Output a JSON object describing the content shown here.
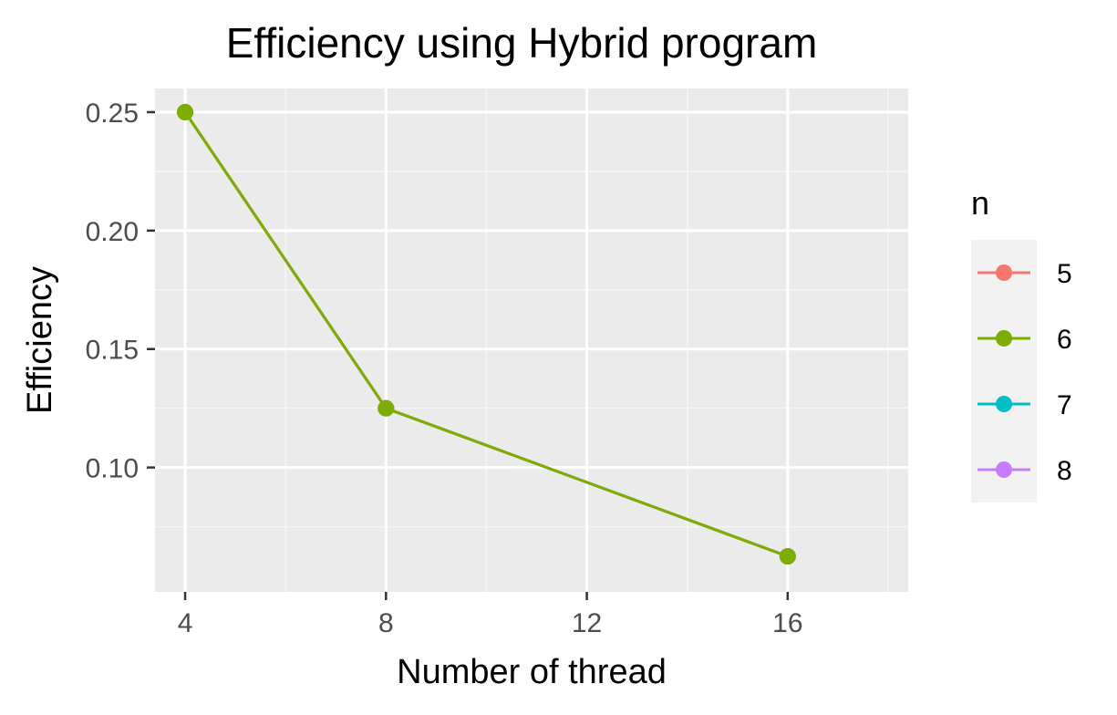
{
  "chart_data": {
    "type": "line",
    "title": "Efficiency using Hybrid program",
    "xlabel": "Number of thread",
    "ylabel": "Efficiency",
    "x": [
      4,
      8,
      16
    ],
    "xlim": [
      3.4,
      18.4
    ],
    "ylim": [
      0.0475,
      0.26
    ],
    "xticks": [
      4,
      8,
      12,
      16
    ],
    "xtick_labels": [
      "4",
      "8",
      "12",
      "16"
    ],
    "yticks": [
      0.1,
      0.15,
      0.2,
      0.25
    ],
    "ytick_labels": [
      "0.10",
      "0.15",
      "0.20",
      "0.25"
    ],
    "grid": true,
    "legend": {
      "title": "n",
      "position": "right"
    },
    "series": [
      {
        "name": "5",
        "color": "#F8766D",
        "values": [
          0.25,
          0.125,
          0.0625
        ]
      },
      {
        "name": "6",
        "color": "#7CAE00",
        "values": [
          0.25,
          0.125,
          0.0625
        ]
      },
      {
        "name": "7",
        "color": "#00BFC4",
        "values": [
          0.25,
          0.125,
          0.0625
        ]
      },
      {
        "name": "8",
        "color": "#C77CFF",
        "values": [
          0.25,
          0.125,
          0.0625
        ]
      }
    ],
    "draw_order": [
      "7",
      "8",
      "5",
      "6"
    ]
  },
  "colors": {
    "panel_background": "#EBEBEB",
    "grid_major": "#FFFFFF",
    "grid_minor": "#F5F5F5",
    "legend_key_background": "#F2F2F2",
    "tick_text": "#4D4D4D",
    "tick_mark": "#333333"
  }
}
